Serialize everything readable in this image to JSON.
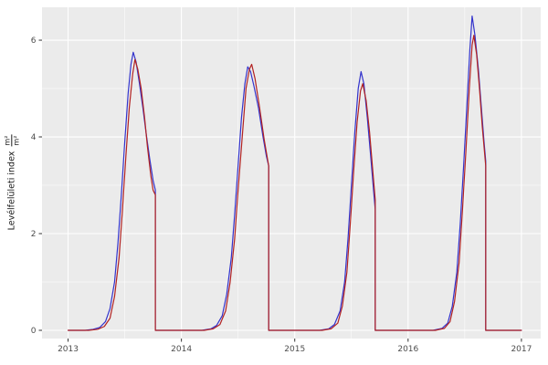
{
  "figure": {
    "background": "#FFFFFF",
    "tick_label_color": "#4D4D4D",
    "tick_mark_color": "#333333"
  },
  "chart_data": {
    "type": "line",
    "title": "",
    "xlabel": "",
    "ylabel": "Levélfelületi index m²/m²",
    "ylabel_text": "Levélfelületi index",
    "ylabel_fraction": {
      "numerator": "m²",
      "denominator": "m²"
    },
    "xlim": [
      2012.77,
      2017.17
    ],
    "ylim": [
      -0.17,
      6.68
    ],
    "x_ticks": [
      2013,
      2014,
      2015,
      2016,
      2017
    ],
    "y_ticks": [
      0,
      2,
      4,
      6
    ],
    "x_minor": [
      2013.5,
      2014.5,
      2015.5,
      2016.5
    ],
    "y_minor": [
      1,
      3,
      5
    ],
    "grid": true,
    "legend_position": "none",
    "panel_bg": "#EBEBEB",
    "grid_major_color": "#FFFFFF",
    "grid_minor_color": "#FFFFFF",
    "series": [
      {
        "name": "blue-series",
        "color": "#3333CC",
        "points": [
          [
            2013.0,
            0
          ],
          [
            2013.15,
            0
          ],
          [
            2013.22,
            0.02
          ],
          [
            2013.28,
            0.06
          ],
          [
            2013.33,
            0.18
          ],
          [
            2013.37,
            0.45
          ],
          [
            2013.41,
            1.0
          ],
          [
            2013.44,
            1.8
          ],
          [
            2013.47,
            2.8
          ],
          [
            2013.5,
            3.9
          ],
          [
            2013.53,
            4.9
          ],
          [
            2013.555,
            5.5
          ],
          [
            2013.575,
            5.75
          ],
          [
            2013.6,
            5.55
          ],
          [
            2013.63,
            5.1
          ],
          [
            2013.66,
            4.6
          ],
          [
            2013.69,
            4.05
          ],
          [
            2013.72,
            3.55
          ],
          [
            2013.75,
            3.1
          ],
          [
            2013.77,
            2.9
          ],
          [
            2013.77,
            0
          ],
          [
            2013.85,
            0
          ],
          [
            2014.0,
            0
          ],
          [
            2014.18,
            0
          ],
          [
            2014.26,
            0.03
          ],
          [
            2014.31,
            0.1
          ],
          [
            2014.36,
            0.3
          ],
          [
            2014.4,
            0.75
          ],
          [
            2014.44,
            1.5
          ],
          [
            2014.47,
            2.4
          ],
          [
            2014.5,
            3.4
          ],
          [
            2014.53,
            4.4
          ],
          [
            2014.56,
            5.1
          ],
          [
            2014.585,
            5.45
          ],
          [
            2014.61,
            5.35
          ],
          [
            2014.64,
            5.05
          ],
          [
            2014.68,
            4.6
          ],
          [
            2014.72,
            4.0
          ],
          [
            2014.75,
            3.6
          ],
          [
            2014.77,
            3.4
          ],
          [
            2014.77,
            0
          ],
          [
            2014.85,
            0
          ],
          [
            2015.0,
            0
          ],
          [
            2015.22,
            0
          ],
          [
            2015.3,
            0.03
          ],
          [
            2015.35,
            0.12
          ],
          [
            2015.4,
            0.4
          ],
          [
            2015.44,
            1.0
          ],
          [
            2015.47,
            1.9
          ],
          [
            2015.5,
            3.0
          ],
          [
            2015.53,
            4.1
          ],
          [
            2015.56,
            5.0
          ],
          [
            2015.585,
            5.35
          ],
          [
            2015.61,
            5.1
          ],
          [
            2015.64,
            4.4
          ],
          [
            2015.67,
            3.6
          ],
          [
            2015.695,
            2.9
          ],
          [
            2015.71,
            2.5
          ],
          [
            2015.71,
            0
          ],
          [
            2015.8,
            0
          ],
          [
            2016.0,
            0
          ],
          [
            2016.22,
            0
          ],
          [
            2016.3,
            0.04
          ],
          [
            2016.35,
            0.15
          ],
          [
            2016.39,
            0.5
          ],
          [
            2016.43,
            1.2
          ],
          [
            2016.46,
            2.2
          ],
          [
            2016.49,
            3.4
          ],
          [
            2016.52,
            4.7
          ],
          [
            2016.545,
            5.8
          ],
          [
            2016.565,
            6.5
          ],
          [
            2016.59,
            6.1
          ],
          [
            2016.62,
            5.4
          ],
          [
            2016.65,
            4.5
          ],
          [
            2016.67,
            3.9
          ],
          [
            2016.685,
            3.5
          ],
          [
            2016.685,
            0
          ],
          [
            2016.8,
            0
          ],
          [
            2017.0,
            0
          ]
        ]
      },
      {
        "name": "red-series",
        "color": "#B22222",
        "points": [
          [
            2013.0,
            0
          ],
          [
            2013.18,
            0
          ],
          [
            2013.26,
            0.02
          ],
          [
            2013.32,
            0.08
          ],
          [
            2013.37,
            0.25
          ],
          [
            2013.41,
            0.7
          ],
          [
            2013.45,
            1.5
          ],
          [
            2013.48,
            2.5
          ],
          [
            2013.51,
            3.6
          ],
          [
            2013.54,
            4.6
          ],
          [
            2013.57,
            5.3
          ],
          [
            2013.59,
            5.6
          ],
          [
            2013.615,
            5.4
          ],
          [
            2013.645,
            5.0
          ],
          [
            2013.675,
            4.4
          ],
          [
            2013.7,
            3.8
          ],
          [
            2013.73,
            3.2
          ],
          [
            2013.75,
            2.9
          ],
          [
            2013.77,
            2.8
          ],
          [
            2013.77,
            0
          ],
          [
            2013.85,
            0
          ],
          [
            2014.0,
            0
          ],
          [
            2014.2,
            0
          ],
          [
            2014.28,
            0.03
          ],
          [
            2014.34,
            0.12
          ],
          [
            2014.39,
            0.4
          ],
          [
            2014.43,
            1.0
          ],
          [
            2014.47,
            1.9
          ],
          [
            2014.5,
            2.9
          ],
          [
            2014.54,
            4.1
          ],
          [
            2014.57,
            5.0
          ],
          [
            2014.6,
            5.4
          ],
          [
            2014.62,
            5.5
          ],
          [
            2014.65,
            5.2
          ],
          [
            2014.69,
            4.6
          ],
          [
            2014.73,
            3.95
          ],
          [
            2014.77,
            3.4
          ],
          [
            2014.77,
            0
          ],
          [
            2014.85,
            0
          ],
          [
            2015.0,
            0
          ],
          [
            2015.24,
            0
          ],
          [
            2015.32,
            0.03
          ],
          [
            2015.38,
            0.15
          ],
          [
            2015.42,
            0.5
          ],
          [
            2015.46,
            1.2
          ],
          [
            2015.49,
            2.2
          ],
          [
            2015.52,
            3.3
          ],
          [
            2015.55,
            4.3
          ],
          [
            2015.58,
            4.95
          ],
          [
            2015.6,
            5.1
          ],
          [
            2015.63,
            4.75
          ],
          [
            2015.66,
            4.1
          ],
          [
            2015.685,
            3.4
          ],
          [
            2015.71,
            2.7
          ],
          [
            2015.71,
            0
          ],
          [
            2015.8,
            0
          ],
          [
            2016.0,
            0
          ],
          [
            2016.24,
            0
          ],
          [
            2016.32,
            0.04
          ],
          [
            2016.37,
            0.18
          ],
          [
            2016.41,
            0.6
          ],
          [
            2016.45,
            1.4
          ],
          [
            2016.48,
            2.5
          ],
          [
            2016.51,
            3.7
          ],
          [
            2016.54,
            5.0
          ],
          [
            2016.565,
            5.9
          ],
          [
            2016.58,
            6.1
          ],
          [
            2016.605,
            5.7
          ],
          [
            2016.63,
            5.0
          ],
          [
            2016.655,
            4.2
          ],
          [
            2016.685,
            3.4
          ],
          [
            2016.685,
            0
          ],
          [
            2016.8,
            0
          ],
          [
            2017.0,
            0
          ]
        ]
      }
    ]
  }
}
